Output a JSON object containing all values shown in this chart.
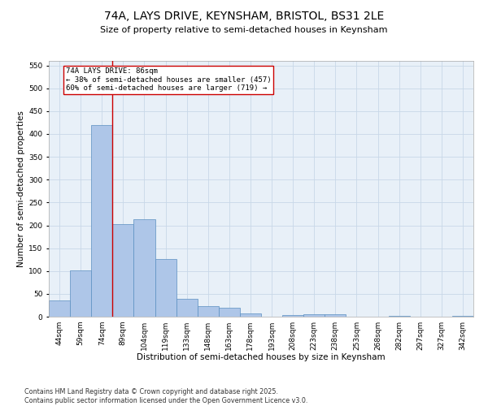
{
  "title_line1": "74A, LAYS DRIVE, KEYNSHAM, BRISTOL, BS31 2LE",
  "title_line2": "Size of property relative to semi-detached houses in Keynsham",
  "xlabel": "Distribution of semi-detached houses by size in Keynsham",
  "ylabel": "Number of semi-detached properties",
  "categories": [
    "44sqm",
    "59sqm",
    "74sqm",
    "89sqm",
    "104sqm",
    "119sqm",
    "133sqm",
    "148sqm",
    "163sqm",
    "178sqm",
    "193sqm",
    "208sqm",
    "223sqm",
    "238sqm",
    "253sqm",
    "268sqm",
    "282sqm",
    "297sqm",
    "327sqm",
    "342sqm"
  ],
  "values": [
    35,
    101,
    420,
    203,
    213,
    126,
    39,
    24,
    19,
    8,
    0,
    4,
    6,
    5,
    0,
    0,
    1,
    0,
    0,
    1
  ],
  "bar_color": "#aec6e8",
  "bar_edge_color": "#5a8fc0",
  "vline_color": "#cc0000",
  "box_edge_color": "#cc0000",
  "ylim": [
    0,
    560
  ],
  "yticks": [
    0,
    50,
    100,
    150,
    200,
    250,
    300,
    350,
    400,
    450,
    500,
    550
  ],
  "grid_color": "#c8d8e8",
  "background_color": "#e8f0f8",
  "footer": "Contains HM Land Registry data © Crown copyright and database right 2025.\nContains public sector information licensed under the Open Government Licence v3.0.",
  "title_fontsize": 10,
  "subtitle_fontsize": 8,
  "axis_label_fontsize": 7.5,
  "tick_fontsize": 6.5,
  "footer_fontsize": 5.8,
  "annotation_fontsize": 6.5
}
